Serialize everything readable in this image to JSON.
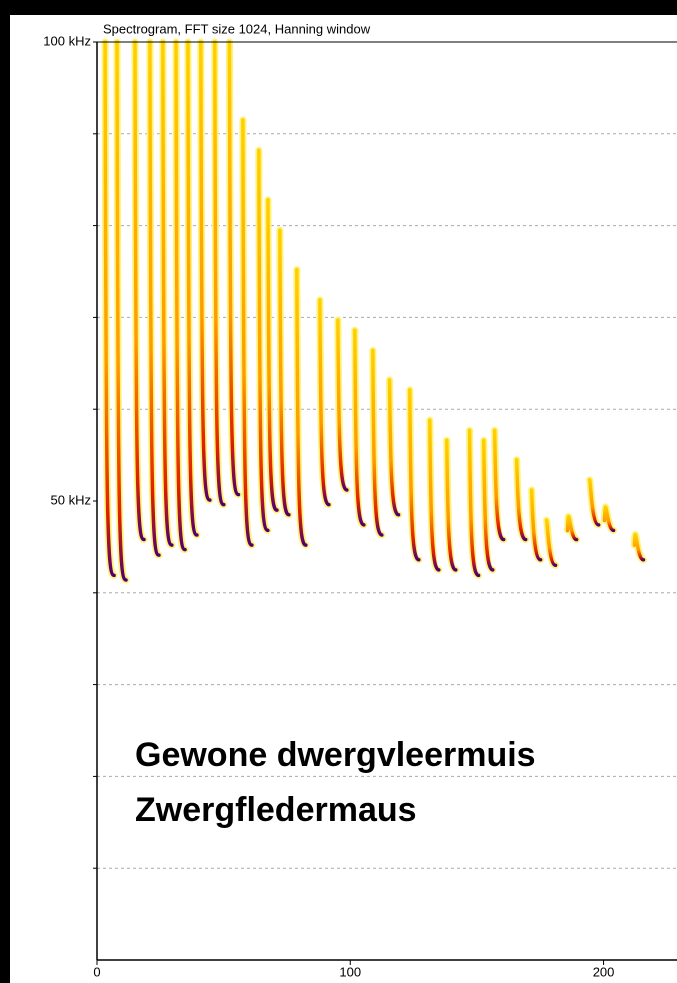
{
  "chart_data": {
    "type": "spectrogram",
    "title": "Spectrogram, FFT size 1024, Hanning window",
    "annotations": [
      "Gewone dwergvleermuis",
      "Zwergfledermaus"
    ],
    "x": [
      3.2,
      7.9,
      15,
      20.9,
      26,
      31.2,
      35.9,
      41,
      46.5,
      52.3,
      57.6,
      63.9,
      67.5,
      72.2,
      78.9,
      88,
      95.1,
      101.8,
      108.9,
      115.5,
      123.5,
      131.4,
      138.1,
      147.1,
      152.7,
      157,
      165.7,
      171.6,
      177.5,
      185.8,
      194.5,
      200.4,
      212.2
    ],
    "start": [
      100,
      100,
      100,
      100,
      100,
      100,
      100,
      100,
      100,
      100,
      91.5,
      88.2,
      82.8,
      79.5,
      75.2,
      71.9,
      69.7,
      68.6,
      66.4,
      63.2,
      62.1,
      58.8,
      56.6,
      57.7,
      56.6,
      57.7,
      54.5,
      51.2,
      47.9,
      46.8,
      52.3,
      47.9,
      45.2
    ],
    "values": [
      41.9,
      41.4,
      45.8,
      44.1,
      45.2,
      44.7,
      46.3,
      50.1,
      49.6,
      50.7,
      45.2,
      46.8,
      49,
      48.5,
      45.2,
      49.6,
      51.2,
      47.4,
      46.3,
      48.5,
      43.6,
      42.5,
      42.5,
      41.9,
      42.5,
      45.8,
      45.8,
      43.6,
      43,
      45.8,
      47.4,
      46.8,
      43.6
    ],
    "xlim": [
      0,
      229
    ],
    "ylim": [
      0,
      100
    ],
    "xticks": [
      0,
      100,
      200
    ],
    "yticks": [
      {
        "value": 100,
        "label": "100 kHz"
      },
      {
        "value": 50,
        "label": "50 kHz"
      }
    ],
    "grid_yticks": [
      10,
      20,
      30,
      40,
      60,
      70,
      80,
      90
    ],
    "grid": true
  }
}
